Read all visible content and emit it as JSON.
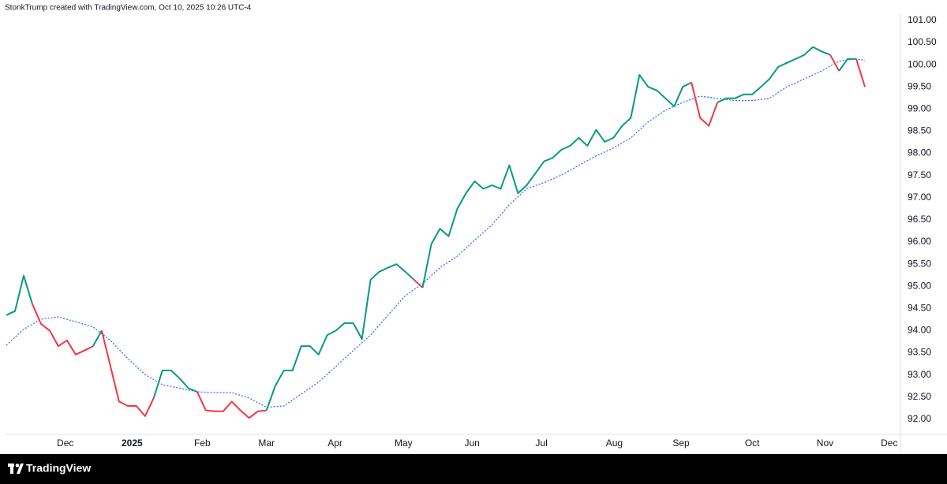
{
  "chart_data": {
    "type": "line",
    "caption": "StonkTrump created with TradingView.com, Oct 10, 2025 10:26 UTC-4",
    "brand": "TradingView",
    "xlim": [
      0,
      103
    ],
    "xticks": [
      {
        "value": 6.8,
        "label": "Dec"
      },
      {
        "value": 14.5,
        "label": "2025",
        "bold": true
      },
      {
        "value": 22.6,
        "label": "Feb"
      },
      {
        "value": 30,
        "label": "Mar"
      },
      {
        "value": 37.9,
        "label": "Apr"
      },
      {
        "value": 45.8,
        "label": "May"
      },
      {
        "value": 53.7,
        "label": "Jun"
      },
      {
        "value": 61.7,
        "label": "Jul"
      },
      {
        "value": 70.1,
        "label": "Aug"
      },
      {
        "value": 77.8,
        "label": "Sep"
      },
      {
        "value": 86,
        "label": "Oct"
      },
      {
        "value": 94.4,
        "label": "Nov"
      },
      {
        "value": 101.8,
        "label": "Dec"
      }
    ],
    "ylim": [
      91.66,
      101.14
    ],
    "yticks": [
      {
        "value": 92,
        "label": "92.00"
      },
      {
        "value": 92.5,
        "label": "92.50"
      },
      {
        "value": 93,
        "label": "93.00"
      },
      {
        "value": 93.5,
        "label": "93.50"
      },
      {
        "value": 94,
        "label": "94.00"
      },
      {
        "value": 94.5,
        "label": "94.50"
      },
      {
        "value": 95,
        "label": "95.00"
      },
      {
        "value": 95.5,
        "label": "95.50"
      },
      {
        "value": 96,
        "label": "96.00"
      },
      {
        "value": 96.5,
        "label": "96.50"
      },
      {
        "value": 97,
        "label": "97.00"
      },
      {
        "value": 97.5,
        "label": "97.50"
      },
      {
        "value": 98,
        "label": "98.00"
      },
      {
        "value": 98.5,
        "label": "98.50"
      },
      {
        "value": 99,
        "label": "99.00"
      },
      {
        "value": 99.5,
        "label": "99.50"
      },
      {
        "value": 100,
        "label": "100.00"
      },
      {
        "value": 100.5,
        "label": "100.50"
      },
      {
        "value": 101,
        "label": "101.00"
      }
    ],
    "series": [
      {
        "up_color": "#089981",
        "down_color": "#f23645",
        "x": [
          0,
          1,
          2,
          3,
          4,
          5,
          6,
          7,
          8,
          9,
          10,
          11,
          12,
          13,
          14,
          15,
          16,
          17,
          18,
          19,
          20,
          21,
          22,
          23,
          24,
          25,
          26,
          27,
          28,
          29,
          30,
          31,
          32,
          33,
          34,
          35,
          36,
          37,
          38,
          39,
          40,
          41,
          42,
          43,
          44,
          45,
          46,
          47,
          48,
          49,
          50,
          51,
          52,
          53,
          54,
          55,
          56,
          57,
          58,
          59,
          60,
          61,
          62,
          63,
          64,
          65,
          66,
          67,
          68,
          69,
          70,
          71,
          72,
          73,
          74,
          75,
          76,
          77,
          78,
          79,
          80,
          81,
          82,
          83,
          84,
          85,
          86,
          87,
          88,
          89,
          90,
          91,
          92,
          93,
          94,
          95,
          96,
          97,
          98,
          99
        ],
        "values": [
          94.35,
          94.44,
          95.24,
          94.6,
          94.15,
          94.0,
          93.65,
          93.78,
          93.46,
          93.55,
          93.65,
          94.0,
          93.2,
          92.4,
          92.3,
          92.3,
          92.07,
          92.48,
          93.1,
          93.1,
          92.92,
          92.7,
          92.62,
          92.2,
          92.18,
          92.18,
          92.4,
          92.2,
          92.03,
          92.18,
          92.2,
          92.75,
          93.1,
          93.1,
          93.65,
          93.65,
          93.46,
          93.9,
          94.0,
          94.17,
          94.17,
          93.81,
          95.15,
          95.33,
          95.42,
          95.5,
          95.33,
          95.15,
          94.97,
          95.95,
          96.3,
          96.13,
          96.75,
          97.1,
          97.37,
          97.2,
          97.28,
          97.2,
          97.73,
          97.1,
          97.28,
          97.55,
          97.82,
          97.9,
          98.08,
          98.17,
          98.35,
          98.17,
          98.53,
          98.26,
          98.35,
          98.62,
          98.8,
          99.77,
          99.5,
          99.42,
          99.24,
          99.06,
          99.5,
          99.6,
          98.8,
          98.62,
          99.15,
          99.24,
          99.24,
          99.33,
          99.33,
          99.5,
          99.68,
          99.95,
          100.04,
          100.13,
          100.22,
          100.4,
          100.3,
          100.22,
          99.86,
          100.13,
          100.13,
          99.5
        ]
      },
      {
        "color": "#2962ff",
        "dashed": true,
        "x": [
          0,
          2,
          4,
          6,
          8,
          10,
          12,
          14,
          16,
          18,
          20,
          22,
          24,
          26,
          28,
          30,
          32,
          34,
          36,
          38,
          40,
          42,
          44,
          46,
          48,
          50,
          52,
          54,
          56,
          58,
          60,
          62,
          64,
          66,
          68,
          70,
          72,
          74,
          76,
          78,
          80,
          82,
          84,
          86,
          88,
          90,
          92,
          94,
          96,
          98,
          99
        ],
        "values": [
          93.67,
          94.03,
          94.26,
          94.31,
          94.2,
          94.08,
          93.78,
          93.37,
          93.01,
          92.78,
          92.7,
          92.62,
          92.6,
          92.6,
          92.48,
          92.27,
          92.3,
          92.57,
          92.84,
          93.19,
          93.55,
          93.9,
          94.35,
          94.79,
          95.06,
          95.42,
          95.68,
          96.04,
          96.39,
          96.84,
          97.2,
          97.34,
          97.51,
          97.73,
          97.94,
          98.12,
          98.35,
          98.71,
          98.97,
          99.15,
          99.29,
          99.24,
          99.19,
          99.19,
          99.24,
          99.5,
          99.68,
          99.86,
          100.08,
          100.13,
          100.1
        ]
      }
    ]
  }
}
